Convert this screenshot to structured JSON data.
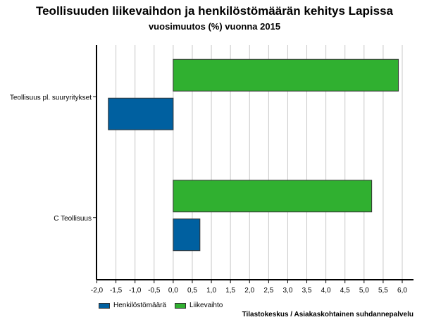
{
  "title": "Teollisuuden liikevaihdon ja henkilöstömäärän kehitys Lapissa",
  "subtitle": "vuosimuutos (%) vuonna 2015",
  "source": "Tilastokeskus / Asiakaskohtainen suhdannepalvelu",
  "chart_data": {
    "type": "bar",
    "orientation": "horizontal",
    "title": "Teollisuuden liikevaihdon ja henkilöstömäärän kehitys Lapissa",
    "subtitle": "vuosimuutos (%) vuonna 2015",
    "categories": [
      "Teollisuus pl. suuryritykset",
      "C Teollisuus"
    ],
    "series": [
      {
        "name": "Henkilöstömäärä",
        "color": "#0060a0",
        "values": [
          -1.7,
          0.7
        ]
      },
      {
        "name": "Liikevaihto",
        "color": "#30b030",
        "values": [
          5.9,
          5.2
        ]
      }
    ],
    "xlim": [
      -2.0,
      6.0
    ],
    "xticks": [
      "-2,0",
      "-1,5",
      "-1,0",
      "-0,5",
      "0,0",
      "0,5",
      "1,0",
      "1,5",
      "2,0",
      "2,5",
      "3,0",
      "3,5",
      "4,0",
      "4,5",
      "5,0",
      "5,5",
      "6,0"
    ],
    "grid": true,
    "legend_position": "bottom-left"
  }
}
